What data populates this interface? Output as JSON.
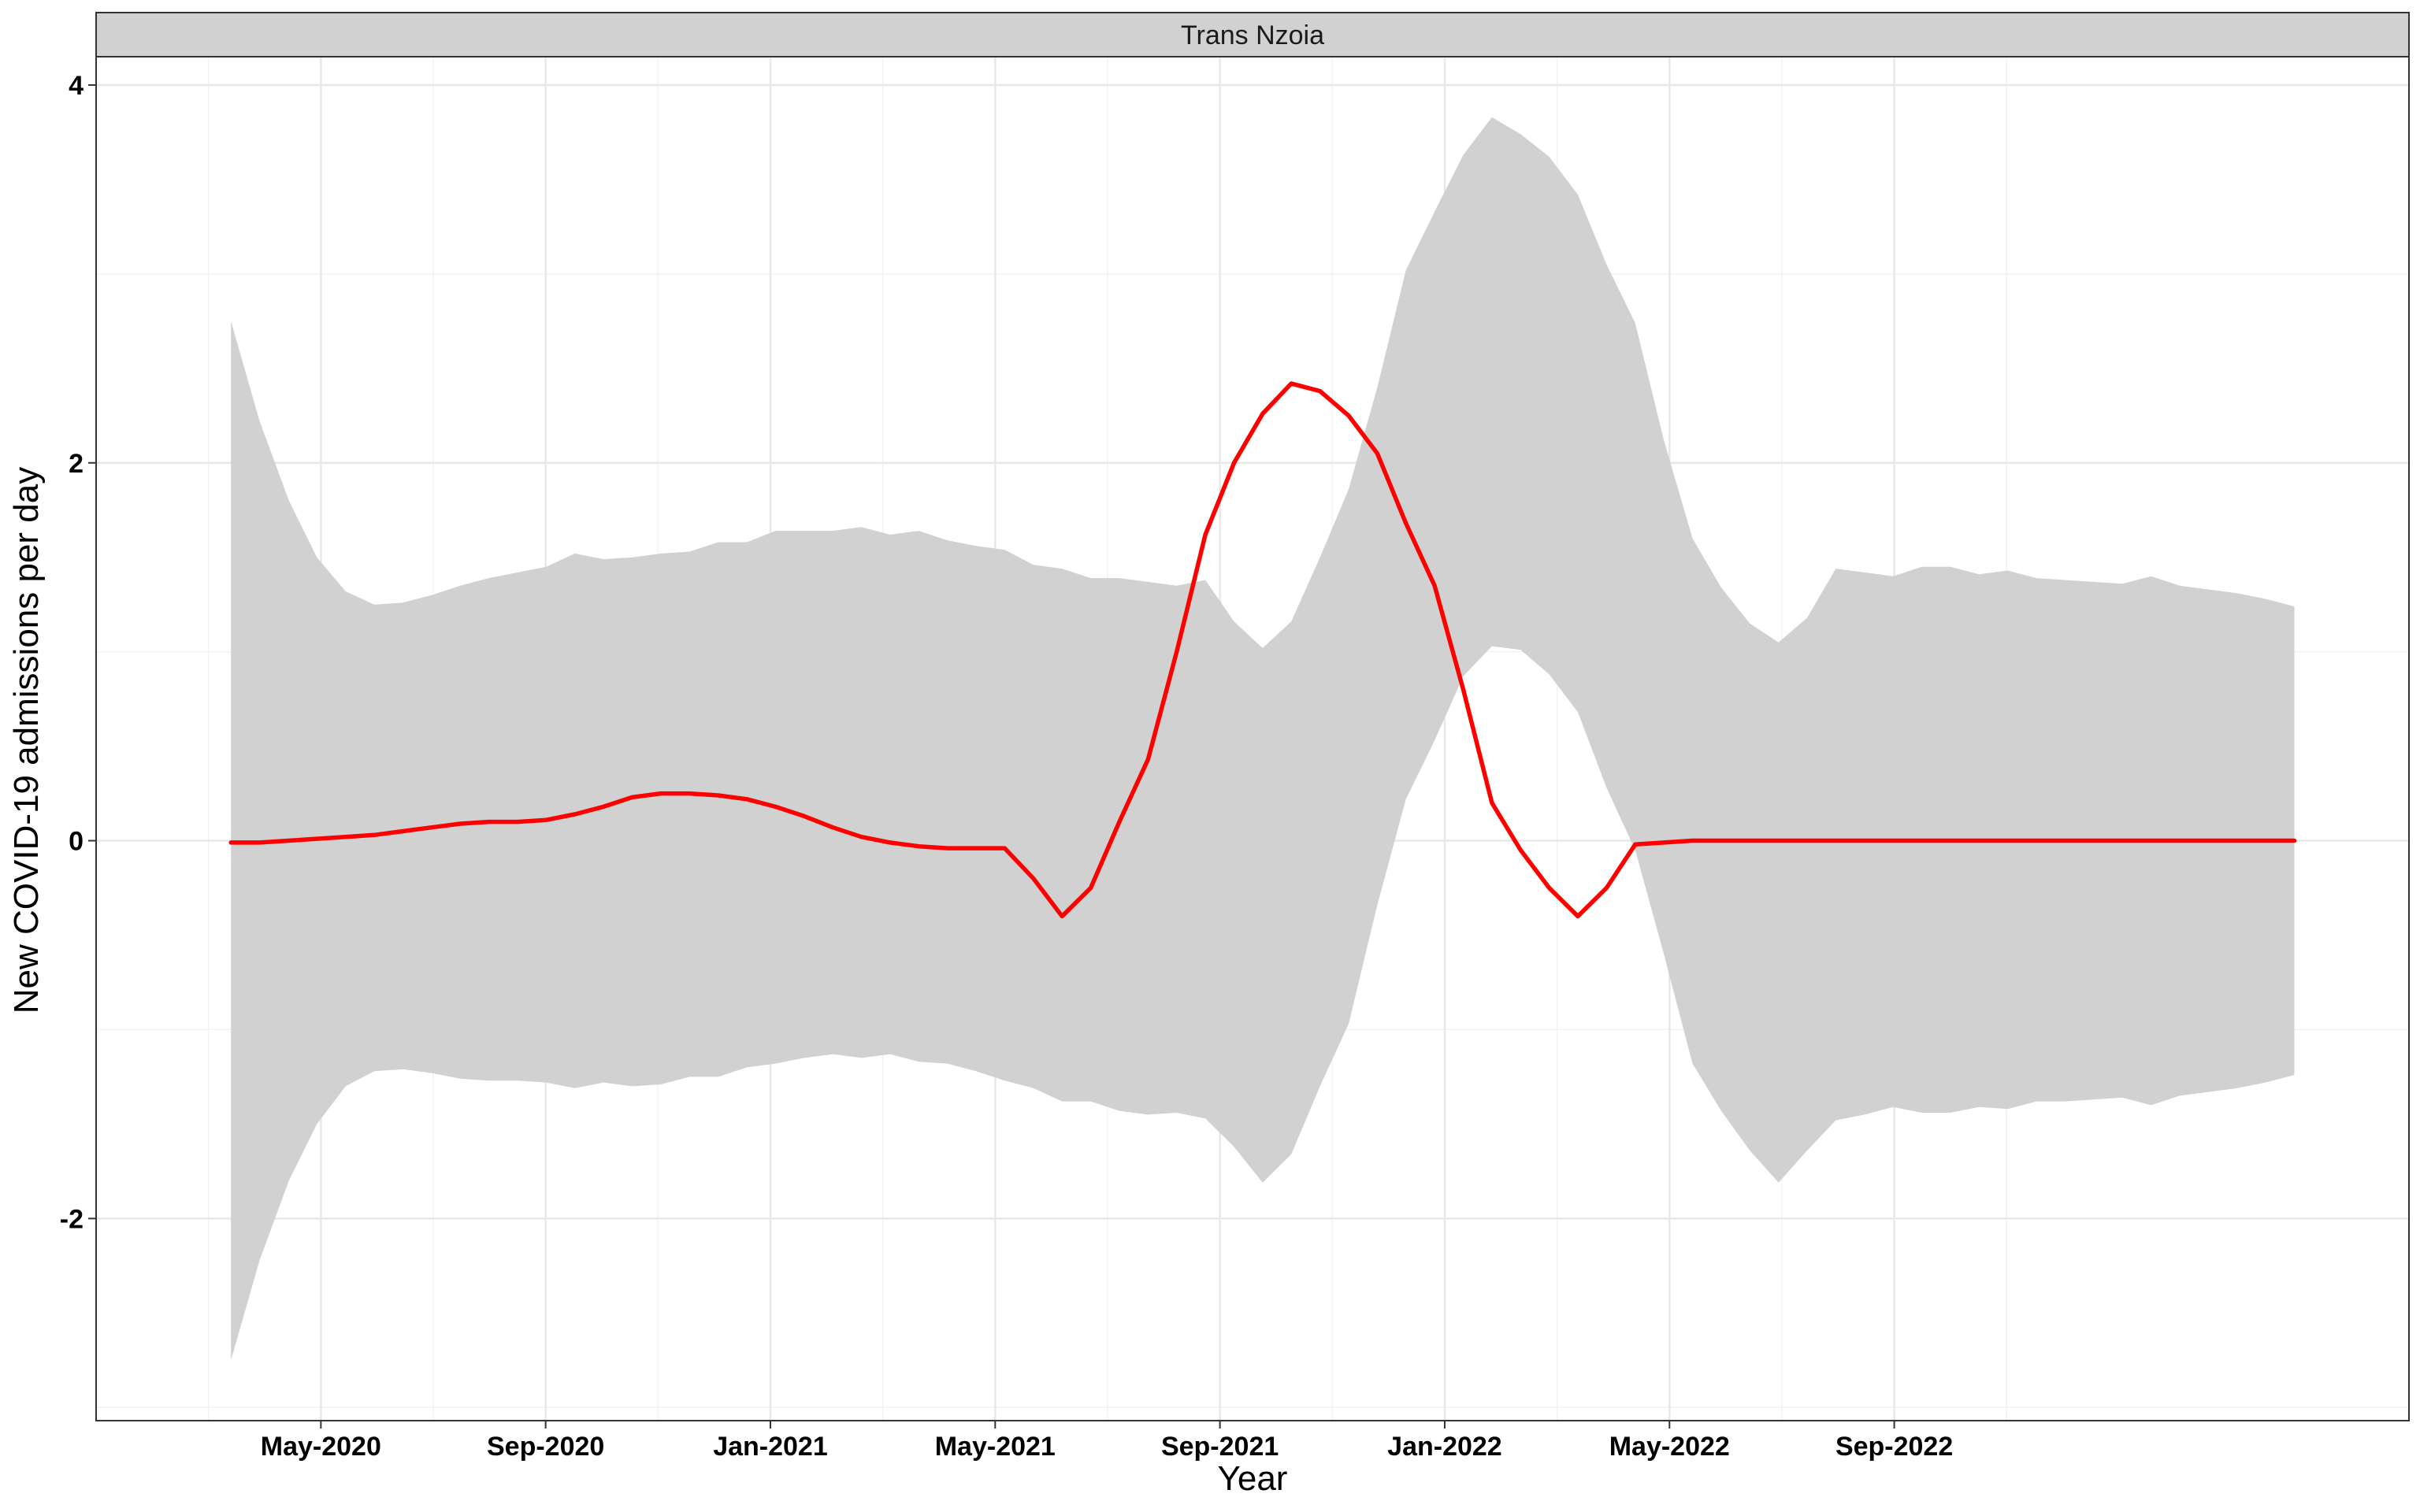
{
  "chart_data": {
    "type": "line",
    "facet_label": "Trans Nzoia",
    "xlabel": "Year",
    "ylabel": "New COVID-19 admissions per day",
    "x_ticks": [
      {
        "label": "May-2020",
        "month": 4
      },
      {
        "label": "Sep-2020",
        "month": 8
      },
      {
        "label": "Jan-2021",
        "month": 12
      },
      {
        "label": "May-2021",
        "month": 16
      },
      {
        "label": "Sep-2021",
        "month": 20
      },
      {
        "label": "Jan-2022",
        "month": 24
      },
      {
        "label": "May-2022",
        "month": 28
      },
      {
        "label": "Sep-2022",
        "month": 32
      }
    ],
    "y_ticks": [
      {
        "label": "-2",
        "value": -2
      },
      {
        "label": "0",
        "value": 0
      },
      {
        "label": "2",
        "value": 2
      },
      {
        "label": "4",
        "value": 4
      }
    ],
    "ylim": [
      -3.07,
      4.15
    ],
    "grid": true,
    "series": [
      {
        "type": "line",
        "color": "#ff0000",
        "points": [
          [
            2.4,
            -0.01
          ],
          [
            2.91,
            -0.01
          ],
          [
            3.43,
            0.0
          ],
          [
            3.93,
            0.01
          ],
          [
            4.44,
            0.02
          ],
          [
            4.95,
            0.03
          ],
          [
            5.46,
            0.05
          ],
          [
            5.97,
            0.07
          ],
          [
            6.48,
            0.09
          ],
          [
            6.99,
            0.1
          ],
          [
            7.5,
            0.1
          ],
          [
            8.01,
            0.11
          ],
          [
            8.52,
            0.14
          ],
          [
            9.03,
            0.18
          ],
          [
            9.54,
            0.23
          ],
          [
            10.05,
            0.25
          ],
          [
            10.56,
            0.25
          ],
          [
            11.07,
            0.24
          ],
          [
            11.58,
            0.22
          ],
          [
            12.09,
            0.18
          ],
          [
            12.6,
            0.13
          ],
          [
            13.11,
            0.07
          ],
          [
            13.62,
            0.02
          ],
          [
            14.13,
            -0.01
          ],
          [
            14.64,
            -0.03
          ],
          [
            15.15,
            -0.04
          ],
          [
            15.66,
            -0.04
          ],
          [
            16.17,
            -0.04
          ],
          [
            16.68,
            -0.2
          ],
          [
            17.19,
            -0.4
          ],
          [
            17.7,
            -0.25
          ],
          [
            18.21,
            0.1
          ],
          [
            18.72,
            0.43
          ],
          [
            19.23,
            1.0
          ],
          [
            19.74,
            1.62
          ],
          [
            20.25,
            2.0
          ],
          [
            20.76,
            2.26
          ],
          [
            21.27,
            2.42
          ],
          [
            21.78,
            2.38
          ],
          [
            22.29,
            2.25
          ],
          [
            22.8,
            2.05
          ],
          [
            23.31,
            1.68
          ],
          [
            23.82,
            1.35
          ],
          [
            24.33,
            0.8
          ],
          [
            24.84,
            0.2
          ],
          [
            25.35,
            -0.05
          ],
          [
            25.86,
            -0.25
          ],
          [
            26.37,
            -0.4
          ],
          [
            26.88,
            -0.25
          ],
          [
            27.39,
            -0.02
          ],
          [
            27.9,
            -0.01
          ],
          [
            28.41,
            0.0
          ],
          [
            28.92,
            0.0
          ],
          [
            29.43,
            0.0
          ],
          [
            29.94,
            0.0
          ],
          [
            30.45,
            0.0
          ],
          [
            30.96,
            0.0
          ],
          [
            31.47,
            0.0
          ],
          [
            31.98,
            0.0
          ],
          [
            32.49,
            0.0
          ],
          [
            33.0,
            0.0
          ],
          [
            33.51,
            0.0
          ],
          [
            34.02,
            0.0
          ],
          [
            34.53,
            0.0
          ],
          [
            35.04,
            0.0
          ],
          [
            35.55,
            0.0
          ],
          [
            36.06,
            0.0
          ],
          [
            36.57,
            0.0
          ],
          [
            37.08,
            0.0
          ],
          [
            37.59,
            0.0
          ],
          [
            38.1,
            0.0
          ],
          [
            38.61,
            0.0
          ],
          [
            39.12,
            0.0
          ]
        ]
      },
      {
        "type": "ribbon",
        "color": "#d1d1d1",
        "upper": [
          [
            2.4,
            2.75
          ],
          [
            2.91,
            2.22
          ],
          [
            3.43,
            1.8
          ],
          [
            3.93,
            1.5
          ],
          [
            4.44,
            1.32
          ],
          [
            4.95,
            1.25
          ],
          [
            5.46,
            1.26
          ],
          [
            5.97,
            1.3
          ],
          [
            6.48,
            1.35
          ],
          [
            6.99,
            1.39
          ],
          [
            7.5,
            1.42
          ],
          [
            8.01,
            1.45
          ],
          [
            8.52,
            1.52
          ],
          [
            9.03,
            1.49
          ],
          [
            9.54,
            1.5
          ],
          [
            10.05,
            1.52
          ],
          [
            10.56,
            1.53
          ],
          [
            11.07,
            1.58
          ],
          [
            11.58,
            1.58
          ],
          [
            12.09,
            1.64
          ],
          [
            12.6,
            1.64
          ],
          [
            13.11,
            1.64
          ],
          [
            13.62,
            1.66
          ],
          [
            14.13,
            1.62
          ],
          [
            14.64,
            1.64
          ],
          [
            15.15,
            1.59
          ],
          [
            15.66,
            1.56
          ],
          [
            16.17,
            1.54
          ],
          [
            16.68,
            1.46
          ],
          [
            17.19,
            1.44
          ],
          [
            17.7,
            1.39
          ],
          [
            18.21,
            1.39
          ],
          [
            18.72,
            1.37
          ],
          [
            19.23,
            1.35
          ],
          [
            19.74,
            1.38
          ],
          [
            20.25,
            1.16
          ],
          [
            20.76,
            1.02
          ],
          [
            21.27,
            1.16
          ],
          [
            21.78,
            1.5
          ],
          [
            22.29,
            1.86
          ],
          [
            22.8,
            2.4
          ],
          [
            23.31,
            3.02
          ],
          [
            23.82,
            3.33
          ],
          [
            24.33,
            3.63
          ],
          [
            24.84,
            3.83
          ],
          [
            25.35,
            3.74
          ],
          [
            25.86,
            3.62
          ],
          [
            26.37,
            3.42
          ],
          [
            26.88,
            3.05
          ],
          [
            27.39,
            2.74
          ],
          [
            27.9,
            2.12
          ],
          [
            28.41,
            1.6
          ],
          [
            28.92,
            1.34
          ],
          [
            29.43,
            1.15
          ],
          [
            29.94,
            1.05
          ],
          [
            30.45,
            1.18
          ],
          [
            30.96,
            1.44
          ],
          [
            31.47,
            1.42
          ],
          [
            31.98,
            1.4
          ],
          [
            32.49,
            1.45
          ],
          [
            33.0,
            1.45
          ],
          [
            33.51,
            1.41
          ],
          [
            34.02,
            1.43
          ],
          [
            34.53,
            1.39
          ],
          [
            35.04,
            1.38
          ],
          [
            35.55,
            1.37
          ],
          [
            36.06,
            1.36
          ],
          [
            36.57,
            1.4
          ],
          [
            37.08,
            1.35
          ],
          [
            37.59,
            1.33
          ],
          [
            38.1,
            1.31
          ],
          [
            38.61,
            1.28
          ],
          [
            39.12,
            1.24
          ]
        ],
        "lower": [
          [
            2.4,
            -2.75
          ],
          [
            2.91,
            -2.22
          ],
          [
            3.43,
            -1.8
          ],
          [
            3.93,
            -1.5
          ],
          [
            4.44,
            -1.3
          ],
          [
            4.95,
            -1.22
          ],
          [
            5.46,
            -1.21
          ],
          [
            5.97,
            -1.23
          ],
          [
            6.48,
            -1.26
          ],
          [
            6.99,
            -1.27
          ],
          [
            7.5,
            -1.27
          ],
          [
            8.01,
            -1.28
          ],
          [
            8.52,
            -1.31
          ],
          [
            9.03,
            -1.28
          ],
          [
            9.54,
            -1.3
          ],
          [
            10.05,
            -1.29
          ],
          [
            10.56,
            -1.25
          ],
          [
            11.07,
            -1.25
          ],
          [
            11.58,
            -1.2
          ],
          [
            12.09,
            -1.18
          ],
          [
            12.6,
            -1.15
          ],
          [
            13.11,
            -1.13
          ],
          [
            13.62,
            -1.15
          ],
          [
            14.13,
            -1.13
          ],
          [
            14.64,
            -1.17
          ],
          [
            15.15,
            -1.18
          ],
          [
            15.66,
            -1.22
          ],
          [
            16.17,
            -1.27
          ],
          [
            16.68,
            -1.31
          ],
          [
            17.19,
            -1.38
          ],
          [
            17.7,
            -1.38
          ],
          [
            18.21,
            -1.43
          ],
          [
            18.72,
            -1.45
          ],
          [
            19.23,
            -1.44
          ],
          [
            19.74,
            -1.47
          ],
          [
            20.25,
            -1.62
          ],
          [
            20.76,
            -1.81
          ],
          [
            21.27,
            -1.66
          ],
          [
            21.78,
            -1.3
          ],
          [
            22.29,
            -0.97
          ],
          [
            22.8,
            -0.34
          ],
          [
            23.31,
            0.22
          ],
          [
            23.82,
            0.53
          ],
          [
            24.33,
            0.87
          ],
          [
            24.84,
            1.03
          ],
          [
            25.35,
            1.01
          ],
          [
            25.86,
            0.88
          ],
          [
            26.37,
            0.68
          ],
          [
            26.88,
            0.28
          ],
          [
            27.39,
            -0.05
          ],
          [
            27.9,
            -0.6
          ],
          [
            28.41,
            -1.18
          ],
          [
            28.92,
            -1.43
          ],
          [
            29.43,
            -1.64
          ],
          [
            29.94,
            -1.81
          ],
          [
            30.45,
            -1.64
          ],
          [
            30.96,
            -1.48
          ],
          [
            31.47,
            -1.45
          ],
          [
            31.98,
            -1.41
          ],
          [
            32.49,
            -1.44
          ],
          [
            33.0,
            -1.44
          ],
          [
            33.51,
            -1.41
          ],
          [
            34.02,
            -1.42
          ],
          [
            34.53,
            -1.38
          ],
          [
            35.04,
            -1.38
          ],
          [
            35.55,
            -1.37
          ],
          [
            36.06,
            -1.36
          ],
          [
            36.57,
            -1.4
          ],
          [
            37.08,
            -1.35
          ],
          [
            37.59,
            -1.33
          ],
          [
            38.1,
            -1.31
          ],
          [
            38.61,
            -1.28
          ],
          [
            39.12,
            -1.24
          ]
        ]
      }
    ]
  }
}
